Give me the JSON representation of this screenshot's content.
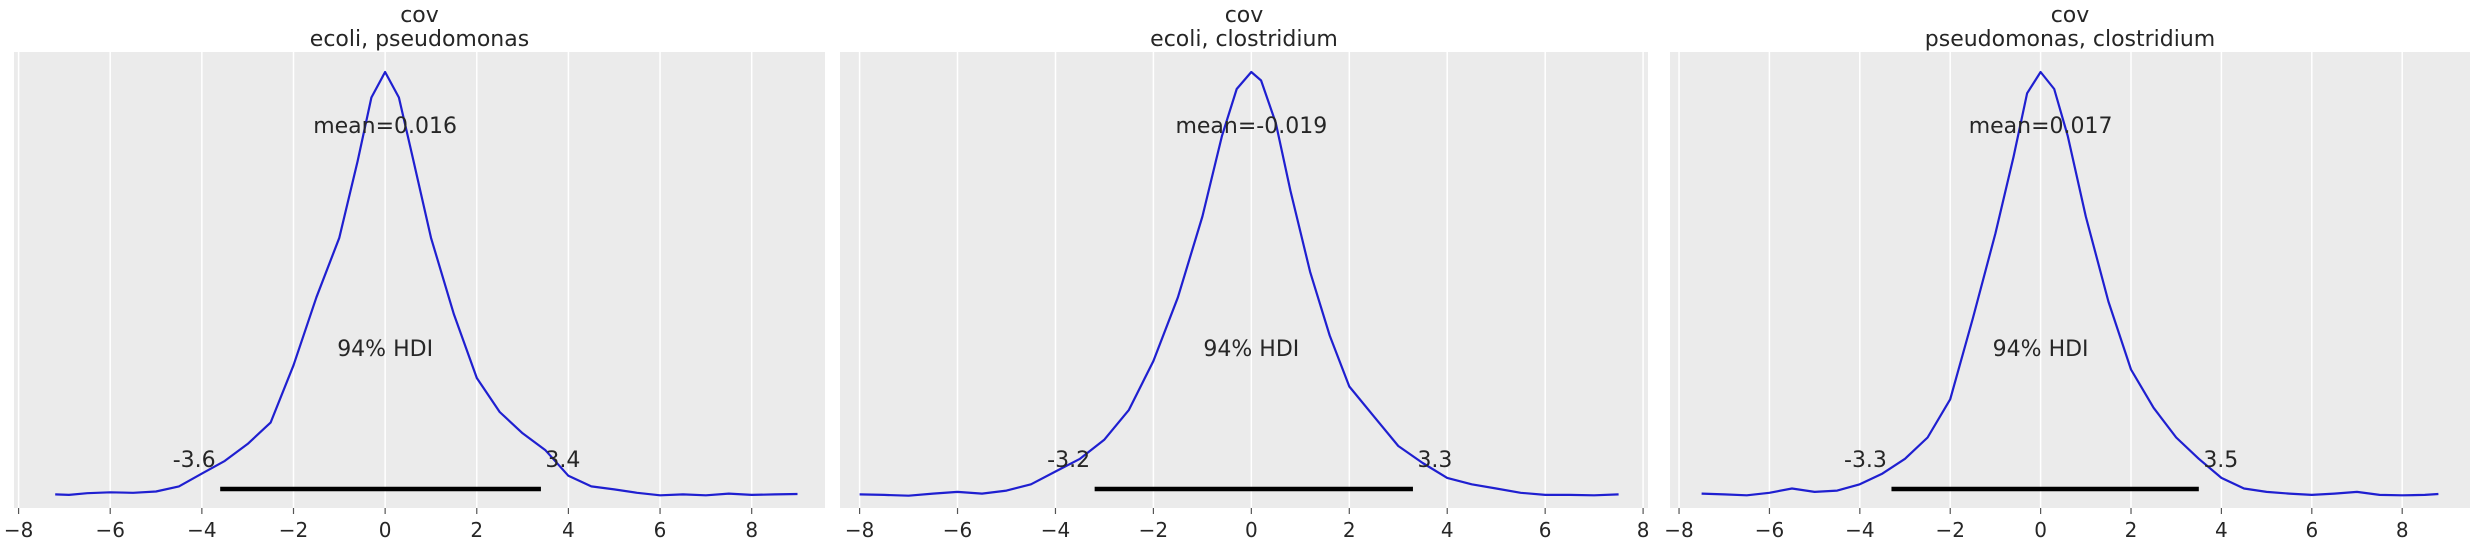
{
  "chart_data": [
    {
      "type": "area",
      "title": "cov",
      "subtitle": "ecoli, pseudomonas",
      "xlabel": "",
      "ylabel": "",
      "xlim": [
        -8.1,
        9.6
      ],
      "xticks": [
        -8,
        -6,
        -4,
        -2,
        0,
        2,
        4,
        6,
        8
      ],
      "grid": true,
      "series_color": "#1f1fd0",
      "density": {
        "x": [
          -7.2,
          -6.9,
          -6.5,
          -6.0,
          -5.5,
          -5.0,
          -4.5,
          -4.0,
          -3.5,
          -3.0,
          -2.5,
          -2.0,
          -1.5,
          -1.0,
          -0.6,
          -0.3,
          0.0,
          0.3,
          0.6,
          1.0,
          1.5,
          2.0,
          2.5,
          3.0,
          3.5,
          4.0,
          4.5,
          5.0,
          5.5,
          6.0,
          6.5,
          7.0,
          7.5,
          8.0,
          8.5,
          9.0
        ],
        "y": [
          0.006,
          0.005,
          0.009,
          0.011,
          0.01,
          0.013,
          0.025,
          0.055,
          0.085,
          0.125,
          0.175,
          0.31,
          0.47,
          0.61,
          0.79,
          0.94,
          1.0,
          0.94,
          0.8,
          0.61,
          0.43,
          0.28,
          0.2,
          0.15,
          0.11,
          0.05,
          0.025,
          0.018,
          0.01,
          0.004,
          0.006,
          0.004,
          0.008,
          0.005,
          0.006,
          0.007
        ]
      },
      "mean_label": "mean=0.016",
      "hdi_label": "94% HDI",
      "hdi": [
        -3.6,
        3.4
      ],
      "hdi_low_label": "-3.6",
      "hdi_high_label": "3.4"
    },
    {
      "type": "area",
      "title": "cov",
      "subtitle": "ecoli, clostridium",
      "xlabel": "",
      "ylabel": "",
      "xlim": [
        -8.4,
        8.1
      ],
      "xticks": [
        -8,
        -6,
        -4,
        -2,
        0,
        2,
        4,
        6,
        8
      ],
      "grid": true,
      "series_color": "#1f1fd0",
      "density": {
        "x": [
          -8.0,
          -7.5,
          -7.0,
          -6.5,
          -6.0,
          -5.5,
          -5.0,
          -4.5,
          -4.0,
          -3.5,
          -3.0,
          -2.5,
          -2.0,
          -1.5,
          -1.0,
          -0.6,
          -0.3,
          0.0,
          0.2,
          0.5,
          0.8,
          1.2,
          1.6,
          2.0,
          2.5,
          3.0,
          3.5,
          4.0,
          4.5,
          5.0,
          5.5,
          6.0,
          6.5,
          7.0,
          7.5
        ],
        "y": [
          0.006,
          0.005,
          0.003,
          0.008,
          0.012,
          0.008,
          0.015,
          0.03,
          0.06,
          0.09,
          0.135,
          0.205,
          0.32,
          0.47,
          0.66,
          0.85,
          0.96,
          1.0,
          0.98,
          0.88,
          0.72,
          0.53,
          0.38,
          0.26,
          0.19,
          0.12,
          0.08,
          0.045,
          0.03,
          0.02,
          0.01,
          0.005,
          0.005,
          0.004,
          0.006
        ]
      },
      "mean_label": "mean=-0.019",
      "hdi_label": "94% HDI",
      "hdi": [
        -3.2,
        3.3
      ],
      "hdi_low_label": "-3.2",
      "hdi_high_label": "3.3"
    },
    {
      "type": "area",
      "title": "cov",
      "subtitle": "pseudomonas, clostridium",
      "xlabel": "",
      "ylabel": "",
      "xlim": [
        -8.2,
        9.5
      ],
      "xticks": [
        -8,
        -6,
        -4,
        -2,
        0,
        2,
        4,
        6,
        8
      ],
      "grid": true,
      "series_color": "#1f1fd0",
      "density": {
        "x": [
          -7.5,
          -7.0,
          -6.5,
          -6.0,
          -5.5,
          -5.0,
          -4.5,
          -4.0,
          -3.5,
          -3.0,
          -2.5,
          -2.0,
          -1.5,
          -1.0,
          -0.6,
          -0.3,
          0.0,
          0.3,
          0.6,
          1.0,
          1.5,
          2.0,
          2.5,
          3.0,
          3.5,
          4.0,
          4.5,
          5.0,
          5.5,
          6.0,
          6.5,
          7.0,
          7.5,
          8.0,
          8.5,
          8.8
        ],
        "y": [
          0.008,
          0.006,
          0.004,
          0.01,
          0.02,
          0.012,
          0.015,
          0.03,
          0.055,
          0.09,
          0.14,
          0.23,
          0.42,
          0.62,
          0.8,
          0.95,
          1.0,
          0.96,
          0.85,
          0.66,
          0.46,
          0.3,
          0.21,
          0.14,
          0.09,
          0.045,
          0.02,
          0.012,
          0.008,
          0.005,
          0.008,
          0.012,
          0.005,
          0.004,
          0.005,
          0.007
        ]
      },
      "mean_label": "mean=0.017",
      "hdi_label": "94% HDI",
      "hdi": [
        -3.3,
        3.5
      ],
      "hdi_low_label": "-3.3",
      "hdi_high_label": "3.5"
    }
  ]
}
